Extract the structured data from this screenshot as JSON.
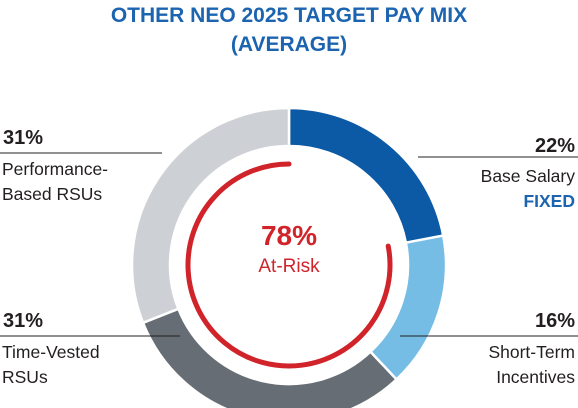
{
  "colors": {
    "title": "#1c64b0",
    "base_salary": "#0c5aa5",
    "short_term": "#76bde6",
    "time_vested": "#676d74",
    "performance": "#cdd0d5",
    "at_risk": "#d0232a",
    "fixed_label": "#1c64b0",
    "leader_line": "#231f20"
  },
  "chart_data": {
    "type": "pie",
    "style": "donut",
    "title": "OTHER NEO 2025 TARGET PAY MIX",
    "subtitle": "(AVERAGE)",
    "slices": [
      {
        "label": "Base Salary",
        "pct_text": "22%",
        "value": 22,
        "color_key": "base_salary",
        "tag": "FIXED"
      },
      {
        "label": "Short-Term Incentives",
        "label_lines": [
          "Short-Term",
          "Incentives"
        ],
        "pct_text": "16%",
        "value": 16,
        "color_key": "short_term"
      },
      {
        "label": "Time-Vested RSUs",
        "label_lines": [
          "Time-Vested",
          "RSUs"
        ],
        "pct_text": "31%",
        "value": 31,
        "color_key": "time_vested"
      },
      {
        "label": "Performance-Based RSUs",
        "label_lines": [
          "Performance-",
          "Based RSUs"
        ],
        "pct_text": "31%",
        "value": 31,
        "color_key": "performance"
      }
    ],
    "at_risk": {
      "pct_text": "78%",
      "label": "At-Risk",
      "value": 78
    }
  }
}
